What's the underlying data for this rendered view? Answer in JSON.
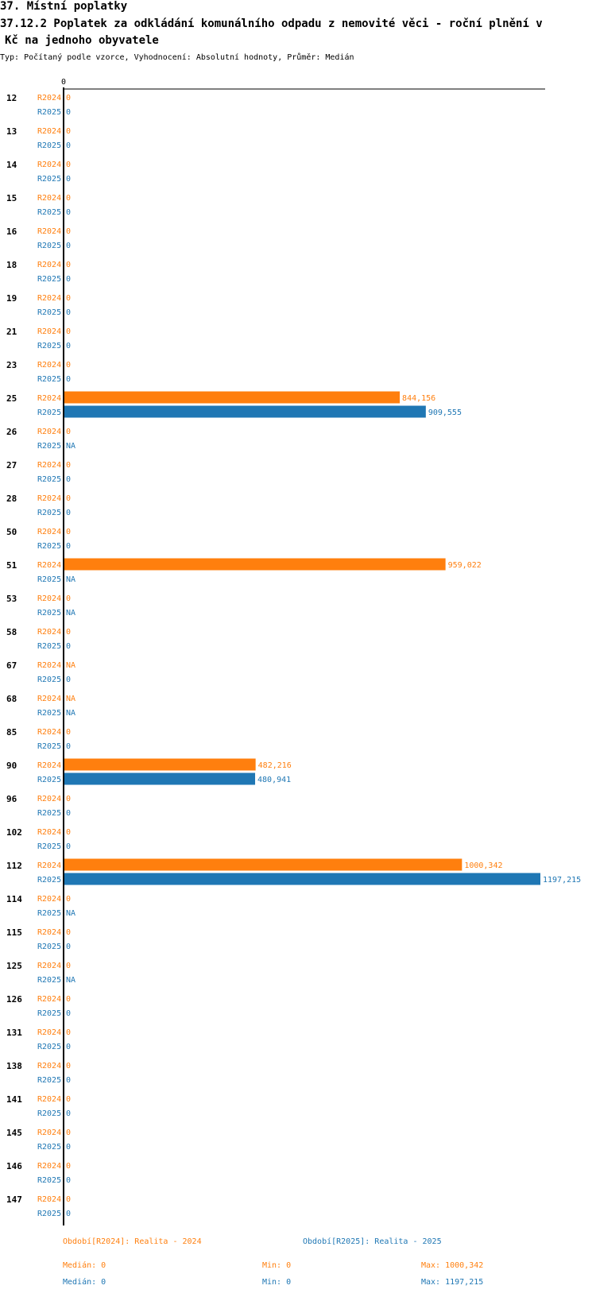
{
  "header": {
    "title_line1": "37. Místní poplatky",
    "title_line2": "37.12.2 Poplatek za odkládání komunálního odpadu z nemovité věci - roční plnění v",
    "title_line3": "Kč na jednoho obyvatele",
    "subtitle": "Typ: Počítaný podle vzorce, Vyhodnocení: Absolutní hodnoty, Průměr: Medián"
  },
  "colors": {
    "r2024": "#ff7f0e",
    "r2025": "#1f77b4",
    "axis": "#000000",
    "row_label": "#000000"
  },
  "chart_data": {
    "type": "bar",
    "orientation": "horizontal",
    "axis_tick_label": "0",
    "xlim": [
      0,
      1197.215
    ],
    "categories": [
      "12",
      "13",
      "14",
      "15",
      "16",
      "18",
      "19",
      "21",
      "23",
      "25",
      "26",
      "27",
      "28",
      "50",
      "51",
      "53",
      "58",
      "67",
      "68",
      "85",
      "90",
      "96",
      "102",
      "112",
      "114",
      "115",
      "125",
      "126",
      "131",
      "138",
      "141",
      "145",
      "146",
      "147"
    ],
    "series": [
      {
        "name": "R2024",
        "values": [
          0,
          0,
          0,
          0,
          0,
          0,
          0,
          0,
          0,
          844.156,
          0,
          0,
          0,
          0,
          959.022,
          0,
          0,
          null,
          null,
          0,
          482.216,
          0,
          0,
          1000.342,
          0,
          0,
          0,
          0,
          0,
          0,
          0,
          0,
          0,
          0
        ],
        "labels": [
          "0",
          "0",
          "0",
          "0",
          "0",
          "0",
          "0",
          "0",
          "0",
          "844,156",
          "0",
          "0",
          "0",
          "0",
          "959,022",
          "0",
          "0",
          "NA",
          "NA",
          "0",
          "482,216",
          "0",
          "0",
          "1000,342",
          "0",
          "0",
          "0",
          "0",
          "0",
          "0",
          "0",
          "0",
          "0",
          "0"
        ]
      },
      {
        "name": "R2025",
        "values": [
          0,
          0,
          0,
          0,
          0,
          0,
          0,
          0,
          0,
          909.555,
          null,
          0,
          0,
          0,
          null,
          null,
          0,
          0,
          null,
          0,
          480.941,
          0,
          0,
          1197.215,
          null,
          0,
          null,
          0,
          0,
          0,
          0,
          0,
          0,
          0
        ],
        "labels": [
          "0",
          "0",
          "0",
          "0",
          "0",
          "0",
          "0",
          "0",
          "0",
          "909,555",
          "NA",
          "0",
          "0",
          "0",
          "NA",
          "NA",
          "0",
          "0",
          "NA",
          "0",
          "480,941",
          "0",
          "0",
          "1197,215",
          "NA",
          "0",
          "NA",
          "0",
          "0",
          "0",
          "0",
          "0",
          "0",
          "0"
        ]
      }
    ],
    "legend": [
      {
        "key": "R2024",
        "text": "Období[R2024]: Realita - 2024"
      },
      {
        "key": "R2025",
        "text": "Období[R2025]: Realita - 2025"
      }
    ],
    "stats": [
      {
        "key": "R2024",
        "median": "Medián: 0",
        "min": "Min: 0",
        "max": "Max: 1000,342"
      },
      {
        "key": "R2025",
        "median": "Medián: 0",
        "min": "Min: 0",
        "max": "Max: 1197,215"
      }
    ]
  }
}
